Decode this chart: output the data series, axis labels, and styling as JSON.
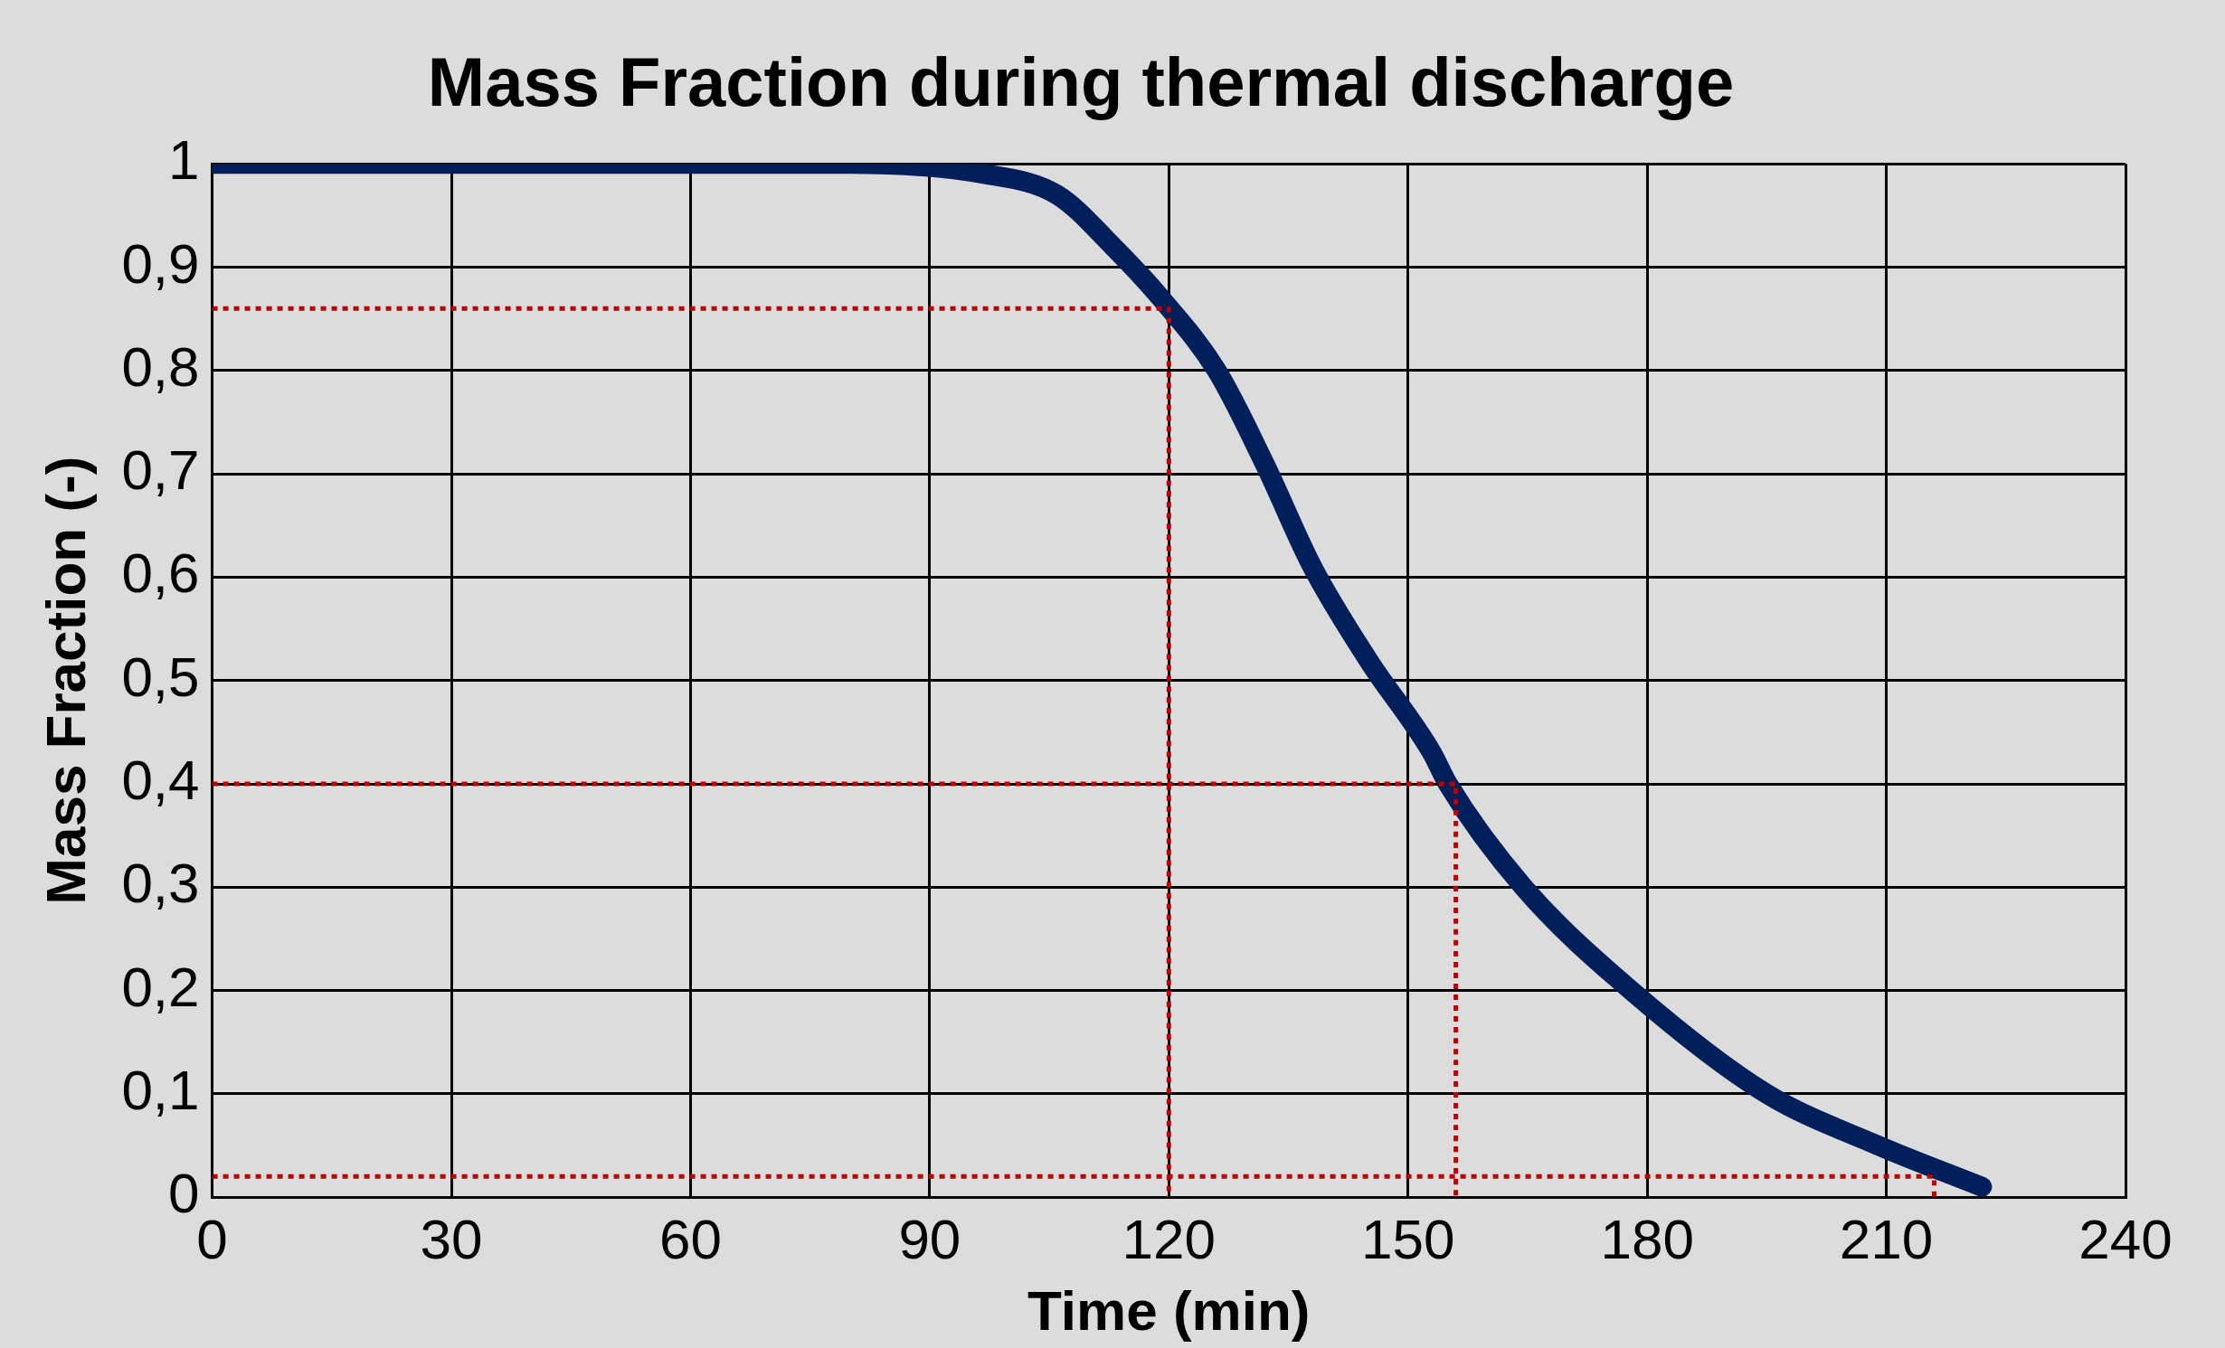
{
  "chart_data": {
    "type": "line",
    "title": "Mass Fraction during thermal discharge",
    "xlabel": "Time (min)",
    "ylabel": "Mass Fraction (-)",
    "xlim": [
      0,
      240
    ],
    "xticks": [
      0,
      30,
      60,
      90,
      120,
      150,
      180,
      210,
      240
    ],
    "ylim": [
      0,
      1
    ],
    "yticks": [
      {
        "value": 0,
        "label": "0"
      },
      {
        "value": 0.1,
        "label": "0,1"
      },
      {
        "value": 0.2,
        "label": "0,2"
      },
      {
        "value": 0.3,
        "label": "0,3"
      },
      {
        "value": 0.4,
        "label": "0,4"
      },
      {
        "value": 0.5,
        "label": "0,5"
      },
      {
        "value": 0.6,
        "label": "0,6"
      },
      {
        "value": 0.7,
        "label": "0,7"
      },
      {
        "value": 0.8,
        "label": "0,8"
      },
      {
        "value": 0.9,
        "label": "0,9"
      },
      {
        "value": 1,
        "label": "1"
      }
    ],
    "grid": true,
    "legend": false,
    "marker": "none",
    "series": [
      {
        "color": "#001f5b",
        "line_style": "solid",
        "x": [
          0,
          80,
          97,
          106,
          113,
          119,
          126,
          132,
          138,
          145,
          153,
          155,
          164.5,
          178,
          195,
          209,
          222
        ],
        "values": [
          1,
          1,
          0.99,
          0.97,
          0.92,
          0.87,
          0.8,
          0.71,
          0.61,
          0.52,
          0.43,
          0.4,
          0.3,
          0.2,
          0.1,
          0.05,
          0.01
        ]
      },
      {
        "color": "#c00000",
        "line_style": "dotted",
        "x": [
          0,
          120,
          120
        ],
        "values": [
          0.86,
          0.86,
          0
        ]
      },
      {
        "color": "#c00000",
        "line_style": "dotted",
        "x": [
          0,
          156,
          156
        ],
        "values": [
          0.4,
          0.4,
          0
        ]
      },
      {
        "color": "#c00000",
        "line_style": "dotted",
        "x": [
          0,
          216,
          216
        ],
        "values": [
          0.02,
          0.02,
          0
        ]
      }
    ]
  }
}
